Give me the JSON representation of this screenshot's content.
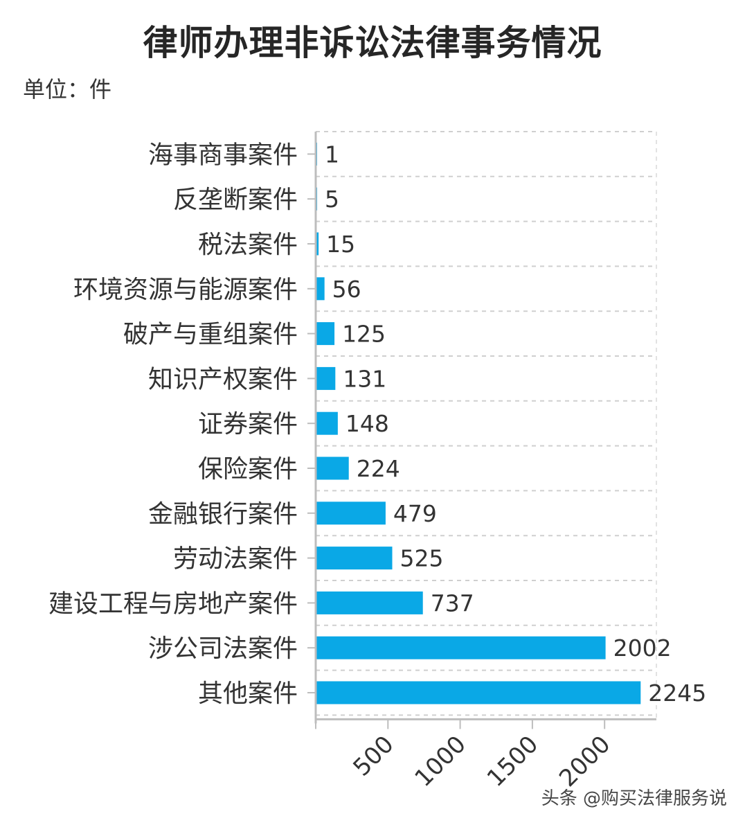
{
  "title": "律师办理非诉讼法律事务情况",
  "unit": "单位：件",
  "watermark": "头条 @购买法律服务说",
  "bar_color": "#0AA8E6",
  "chart_data": {
    "type": "bar",
    "orientation": "horizontal",
    "categories": [
      "海事商事案件",
      "反垄断案件",
      "税法案件",
      "环境资源与能源案件",
      "破产与重组案件",
      "知识产权案件",
      "证券案件",
      "保险案件",
      "金融银行案件",
      "劳动法案件",
      "建设工程与房地产案件",
      "涉公司法案件",
      "其他案件"
    ],
    "values": [
      1,
      5,
      15,
      56,
      125,
      131,
      148,
      224,
      479,
      525,
      737,
      2002,
      2245
    ],
    "xticks": [
      500,
      1000,
      1500,
      2000
    ],
    "xlim": [
      0,
      2350
    ],
    "grid": true,
    "legend": "none"
  }
}
